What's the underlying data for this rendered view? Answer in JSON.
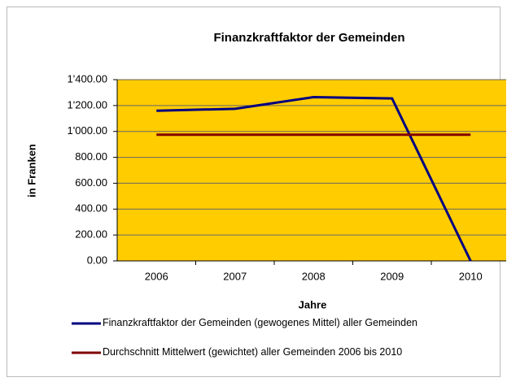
{
  "chart_data": {
    "type": "line",
    "title": "Finanzkraftfaktor der Gemeinden",
    "x_label": "Jahre",
    "y_label": "in Franken",
    "categories": [
      "2006",
      "2007",
      "2008",
      "2009",
      "2010"
    ],
    "series": [
      {
        "name": "Finanzkraftfaktor der Gemeinden (gewogenes Mittel) aller Gemeinden",
        "color": "#000080",
        "values": [
          1160,
          1175,
          1265,
          1255,
          0
        ]
      },
      {
        "name": "Durchschnitt Mittelwert (gewichtet) aller Gemeinden 2006 bis 2010",
        "color": "#800000",
        "values": [
          975,
          975,
          975,
          975,
          975
        ]
      }
    ],
    "ylim": [
      0,
      1400
    ],
    "yticks": [
      {
        "value": 0,
        "label": "0.00"
      },
      {
        "value": 200,
        "label": "200.00"
      },
      {
        "value": 400,
        "label": "400.00"
      },
      {
        "value": 600,
        "label": "600.00"
      },
      {
        "value": 800,
        "label": "800.00"
      },
      {
        "value": 1000,
        "label": "1'000.00"
      },
      {
        "value": 1200,
        "label": "1'200.00"
      },
      {
        "value": 1400,
        "label": "1'400.00"
      }
    ],
    "grid": true,
    "plot_background": "#ffcc00",
    "legend": "bottom"
  }
}
